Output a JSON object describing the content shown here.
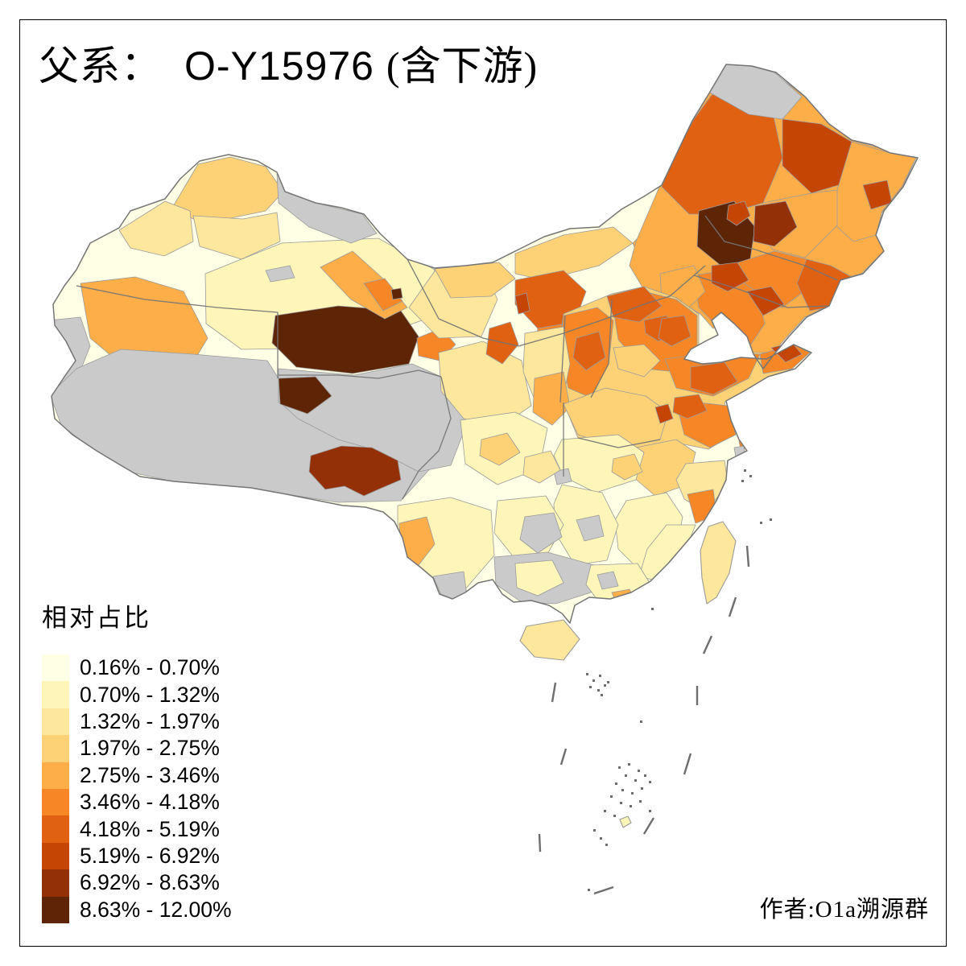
{
  "figure": {
    "title_prefix": "父系：",
    "title_haplogroup": "O-Y15976",
    "title_suffix": "(含下游)",
    "attribution": "作者:O1a溯源群"
  },
  "legend": {
    "title": "相对占比",
    "no_data_color": "#CACACA",
    "classes": [
      {
        "label": "0.16% - 0.70%",
        "color": "#FFFFE5"
      },
      {
        "label": "0.70% - 1.32%",
        "color": "#FEF5B9"
      },
      {
        "label": "1.32% - 1.97%",
        "color": "#FDE79D"
      },
      {
        "label": "1.97% - 2.75%",
        "color": "#FDD277"
      },
      {
        "label": "2.75% - 3.46%",
        "color": "#FDAE49"
      },
      {
        "label": "3.46% - 4.18%",
        "color": "#F78726"
      },
      {
        "label": "4.18% - 5.19%",
        "color": "#E06112"
      },
      {
        "label": "5.19% - 6.92%",
        "color": "#C44504"
      },
      {
        "label": "6.92% - 8.63%",
        "color": "#943007"
      },
      {
        "label": "8.63% - 12.00%",
        "color": "#5E2406"
      }
    ]
  },
  "map": {
    "subject": "China prefecture-level choropleth of haplogroup O-Y15976 relative frequency",
    "outline_color": "#757575",
    "province_border_color": "#757575",
    "cell_border_color": "#9B9B9B",
    "sea_mark_color": "#6E6E6E",
    "regions": [
      {
        "id": "base",
        "class": 0
      },
      {
        "id": "xj_center",
        "class": 1
      },
      {
        "id": "xj_altai",
        "class": 3
      },
      {
        "id": "xj_ne_gray",
        "class": "na"
      },
      {
        "id": "xj_ili",
        "class": 2
      },
      {
        "id": "xj_band",
        "class": 2
      },
      {
        "id": "xj_sw",
        "class": 4
      },
      {
        "id": "xj_w_gray",
        "class": "na"
      },
      {
        "id": "xj_fleck_gray",
        "class": "na"
      },
      {
        "id": "tibet_gray",
        "class": "na"
      },
      {
        "id": "qh_s_gray",
        "class": "na"
      },
      {
        "id": "qaidam",
        "class": 9
      },
      {
        "id": "yushu",
        "class": 9
      },
      {
        "id": "s_tibet",
        "class": 8
      },
      {
        "id": "xining",
        "class": 5
      },
      {
        "id": "gs_corridor",
        "class": 4
      },
      {
        "id": "gs_corr_dark",
        "class": 5
      },
      {
        "id": "jiayuguan",
        "class": 9
      },
      {
        "id": "gs_east",
        "class": 2
      },
      {
        "id": "alxa",
        "class": 2
      },
      {
        "id": "im_west",
        "class": 3
      },
      {
        "id": "im_north",
        "class": 3
      },
      {
        "id": "hetao",
        "class": 6
      },
      {
        "id": "hetao_dark",
        "class": 7
      },
      {
        "id": "ordos",
        "class": 5
      },
      {
        "id": "ningxia",
        "class": 6
      },
      {
        "id": "im_east",
        "class": 4
      },
      {
        "id": "chifeng",
        "class": 5
      },
      {
        "id": "ne_base",
        "class": 4
      },
      {
        "id": "hulunbuir",
        "class": 6
      },
      {
        "id": "mohe_gray",
        "class": "na"
      },
      {
        "id": "heihe",
        "class": 7
      },
      {
        "id": "ne_far",
        "class": 4
      },
      {
        "id": "ne_far_dark",
        "class": 7
      },
      {
        "id": "hlj_mid",
        "class": 4
      },
      {
        "id": "songnen",
        "class": 9
      },
      {
        "id": "songyuan",
        "class": 7
      },
      {
        "id": "harbin",
        "class": 8
      },
      {
        "id": "jilin",
        "class": 5
      },
      {
        "id": "yanbian",
        "class": 6
      },
      {
        "id": "liaoning",
        "class": 5
      },
      {
        "id": "liao_dark_a",
        "class": 7
      },
      {
        "id": "liao_dark_b",
        "class": 7
      },
      {
        "id": "chaoyang",
        "class": 4
      },
      {
        "id": "ncp_base",
        "class": 3
      },
      {
        "id": "hebei",
        "class": 5
      },
      {
        "id": "hebei_s",
        "class": 3
      },
      {
        "id": "zhangjiakou",
        "class": 6
      },
      {
        "id": "beijing",
        "class": 6
      },
      {
        "id": "tangshan",
        "class": 6
      },
      {
        "id": "shanxi",
        "class": 5
      },
      {
        "id": "shanxi_dark",
        "class": 6
      },
      {
        "id": "shaanxi_n",
        "class": 2
      },
      {
        "id": "shaanxi_mid",
        "class": 4
      },
      {
        "id": "henan",
        "class": 3
      },
      {
        "id": "henan_dark",
        "class": 7
      },
      {
        "id": "shandong",
        "class": 5
      },
      {
        "id": "shandong_pen",
        "class": 5
      },
      {
        "id": "shandong_dark",
        "class": 6
      },
      {
        "id": "yantai",
        "class": 7
      },
      {
        "id": "jiangsu",
        "class": 5
      },
      {
        "id": "xuzhou",
        "class": 6
      },
      {
        "id": "shanghai_o",
        "class": 5
      },
      {
        "id": "shanghai_gray",
        "class": "na"
      },
      {
        "id": "anhui",
        "class": 3
      },
      {
        "id": "hubei",
        "class": 1
      },
      {
        "id": "hubei_gray",
        "class": "na"
      },
      {
        "id": "wuhan",
        "class": 3
      },
      {
        "id": "zhejiang",
        "class": 2
      },
      {
        "id": "wenzhou",
        "class": 5
      },
      {
        "id": "jiangxi",
        "class": 1
      },
      {
        "id": "fujian",
        "class": 1
      },
      {
        "id": "hunan",
        "class": 1
      },
      {
        "id": "hunan_gray",
        "class": "na"
      },
      {
        "id": "sichuan",
        "class": 1
      },
      {
        "id": "chengdu",
        "class": 3
      },
      {
        "id": "chongqing",
        "class": 2
      },
      {
        "id": "guizhou",
        "class": 1
      },
      {
        "id": "guizhou_gray",
        "class": "na"
      },
      {
        "id": "yunnan",
        "class": 1
      },
      {
        "id": "dali",
        "class": 4
      },
      {
        "id": "yn_gray",
        "class": "na"
      },
      {
        "id": "guangxi_gray",
        "class": "na"
      },
      {
        "id": "guangxi_pale",
        "class": 1
      },
      {
        "id": "guangdong",
        "class": 1
      },
      {
        "id": "guangzhou",
        "class": 4
      },
      {
        "id": "gd_gray",
        "class": "na"
      },
      {
        "id": "hainan",
        "class": 2
      },
      {
        "id": "taiwan",
        "class": 2
      },
      {
        "id": "spratly_isle",
        "class": 1
      }
    ]
  }
}
